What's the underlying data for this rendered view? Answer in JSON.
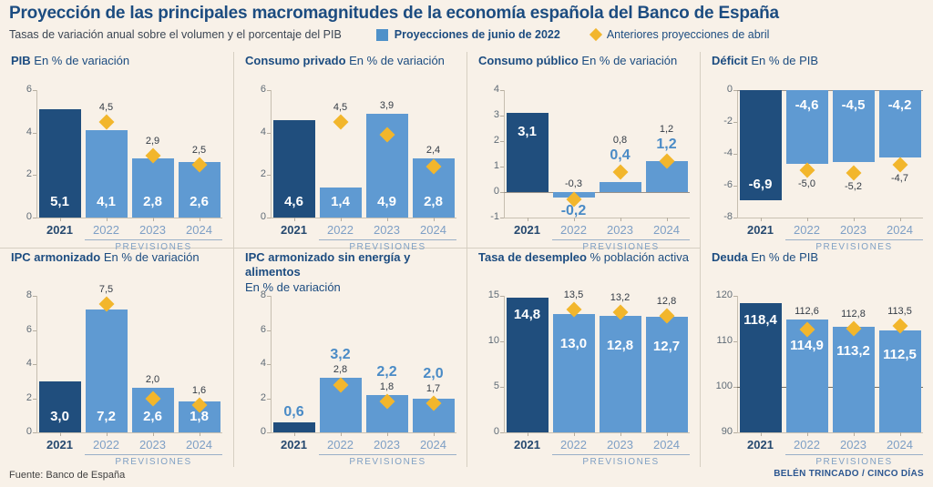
{
  "header": {
    "title": "Proyección de las principales macromagnitudes de la economía española del Banco de España",
    "subtitle": "Tasas de variación anual sobre el volumen y el porcentaje del PIB",
    "legend_june": "Proyecciones de junio de 2022",
    "legend_april": "Anteriores proyecciones de abril"
  },
  "footer": {
    "source": "Fuente: Banco de España",
    "credit": "BELÉN TRINCADO / CINCO DÍAS"
  },
  "previsiones_label": "PREVISIONES",
  "colors": {
    "background": "#f8f1e8",
    "dark_bar": "#204e7d",
    "light_bar": "#5f9ad2",
    "diamond": "#f2b62c",
    "navy_text": "#1c4c80",
    "blue_text": "#4a8bc6"
  },
  "chart_data": [
    {
      "type": "bar",
      "title": "PIB",
      "unit": "En % de variación",
      "unit_break": false,
      "ylim": [
        0,
        6
      ],
      "ticks": [
        6,
        4,
        2,
        0
      ],
      "refline": null,
      "categories": [
        "2021",
        "2022",
        "2023",
        "2024"
      ],
      "bars": [
        {
          "year": "2021",
          "value": 5.1,
          "label": "5,1",
          "label_pos": "in-bottom",
          "dark": true,
          "diamond": null,
          "diamond_label": null
        },
        {
          "year": "2022",
          "value": 4.1,
          "label": "4,1",
          "label_pos": "in-bottom",
          "dark": false,
          "diamond": 4.5,
          "diamond_label": "4,5",
          "diamond_label_pos": "above"
        },
        {
          "year": "2023",
          "value": 2.8,
          "label": "2,8",
          "label_pos": "in-bottom",
          "dark": false,
          "diamond": 2.9,
          "diamond_label": "2,9",
          "diamond_label_pos": "above"
        },
        {
          "year": "2024",
          "value": 2.6,
          "label": "2,6",
          "label_pos": "in-bottom",
          "dark": false,
          "diamond": 2.5,
          "diamond_label": "2,5",
          "diamond_label_pos": "above"
        }
      ]
    },
    {
      "type": "bar",
      "title": "Consumo privado",
      "unit": "En % de variación",
      "unit_break": false,
      "ylim": [
        0,
        6
      ],
      "ticks": [
        6,
        4,
        2,
        0
      ],
      "refline": null,
      "categories": [
        "2021",
        "2022",
        "2023",
        "2024"
      ],
      "bars": [
        {
          "year": "2021",
          "value": 4.6,
          "label": "4,6",
          "label_pos": "in-bottom",
          "dark": true,
          "diamond": null,
          "diamond_label": null
        },
        {
          "year": "2022",
          "value": 1.4,
          "label": "1,4",
          "label_pos": "in-bottom",
          "dark": false,
          "diamond": 4.5,
          "diamond_label": "4,5",
          "diamond_label_pos": "above"
        },
        {
          "year": "2023",
          "value": 4.9,
          "label": "4,9",
          "label_pos": "in-bottom",
          "dark": false,
          "diamond": 3.9,
          "diamond_label": "3,9",
          "diamond_label_pos": "above"
        },
        {
          "year": "2024",
          "value": 2.8,
          "label": "2,8",
          "label_pos": "in-bottom",
          "dark": false,
          "diamond": 2.4,
          "diamond_label": "2,4",
          "diamond_label_pos": "above"
        }
      ]
    },
    {
      "type": "bar",
      "title": "Consumo público",
      "unit": "En % de variación",
      "unit_break": false,
      "ylim": [
        -1,
        4
      ],
      "ticks": [
        4,
        3,
        2,
        1,
        0,
        -1
      ],
      "refline": null,
      "categories": [
        "2021",
        "2022",
        "2023",
        "2024"
      ],
      "bars": [
        {
          "year": "2021",
          "value": 3.1,
          "label": "3,1",
          "label_pos": "in-top",
          "label_dy": 12,
          "dark": true,
          "diamond": null,
          "diamond_label": null
        },
        {
          "year": "2022",
          "value": -0.2,
          "label": "-0,2",
          "label_pos": "below",
          "dark": false,
          "diamond": -0.3,
          "diamond_label": "-0,3",
          "diamond_label_pos": "above"
        },
        {
          "year": "2023",
          "value": 0.4,
          "label": "0,4",
          "label_pos": "above",
          "dark": false,
          "diamond": 0.8,
          "diamond_label": "0,8",
          "diamond_label_pos": "above"
        },
        {
          "year": "2024",
          "value": 1.2,
          "label": "1,2",
          "label_pos": "above",
          "dark": false,
          "diamond": 1.2,
          "diamond_label": "1,2",
          "diamond_label_pos": "above"
        }
      ]
    },
    {
      "type": "bar",
      "title": "Déficit",
      "unit": "En % de PIB",
      "unit_break": false,
      "ylim": [
        -8,
        0
      ],
      "ticks": [
        0,
        -2,
        -4,
        -6,
        -8
      ],
      "refline": null,
      "categories": [
        "2021",
        "2022",
        "2023",
        "2024"
      ],
      "bars": [
        {
          "year": "2021",
          "value": -6.9,
          "label": "-6,9",
          "label_pos": "in-bottom",
          "dark": true,
          "diamond": null,
          "diamond_label": null
        },
        {
          "year": "2022",
          "value": -4.6,
          "label": "-4,6",
          "label_pos": "in-top",
          "dark": false,
          "diamond": -5.0,
          "diamond_label": "-5,0",
          "diamond_label_pos": "below"
        },
        {
          "year": "2023",
          "value": -4.5,
          "label": "-4,5",
          "label_pos": "in-top",
          "dark": false,
          "diamond": -5.2,
          "diamond_label": "-5,2",
          "diamond_label_pos": "below"
        },
        {
          "year": "2024",
          "value": -4.2,
          "label": "-4,2",
          "label_pos": "in-top",
          "dark": false,
          "diamond": -4.7,
          "diamond_label": "-4,7",
          "diamond_label_pos": "below"
        }
      ]
    },
    {
      "type": "bar",
      "title": "IPC armonizado",
      "unit": "En % de variación",
      "unit_break": false,
      "ylim": [
        0,
        8
      ],
      "ticks": [
        8,
        6,
        4,
        2,
        0
      ],
      "refline": null,
      "categories": [
        "2021",
        "2022",
        "2023",
        "2024"
      ],
      "bars": [
        {
          "year": "2021",
          "value": 3.0,
          "label": "3,0",
          "label_pos": "in-bottom",
          "dark": true,
          "diamond": null,
          "diamond_label": null
        },
        {
          "year": "2022",
          "value": 7.2,
          "label": "7,2",
          "label_pos": "in-bottom",
          "dark": false,
          "diamond": 7.5,
          "diamond_label": "7,5",
          "diamond_label_pos": "above"
        },
        {
          "year": "2023",
          "value": 2.6,
          "label": "2,6",
          "label_pos": "in-bottom",
          "dark": false,
          "diamond": 2.0,
          "diamond_label": "2,0",
          "diamond_label_pos": "above"
        },
        {
          "year": "2024",
          "value": 1.8,
          "label": "1,8",
          "label_pos": "in-bottom",
          "dark": false,
          "diamond": 1.6,
          "diamond_label": "1,6",
          "diamond_label_pos": "above"
        }
      ]
    },
    {
      "type": "bar",
      "title": "IPC armonizado sin energía y alimentos",
      "unit": "En % de variación",
      "unit_break": true,
      "ylim": [
        0,
        8
      ],
      "ticks": [
        8,
        6,
        4,
        2,
        0
      ],
      "refline": null,
      "categories": [
        "2021",
        "2022",
        "2023",
        "2024"
      ],
      "bars": [
        {
          "year": "2021",
          "value": 0.6,
          "label": "0,6",
          "label_pos": "above",
          "dark": true,
          "diamond": null,
          "diamond_label": null
        },
        {
          "year": "2022",
          "value": 3.2,
          "label": "3,2",
          "label_pos": "above",
          "dark": false,
          "diamond": 2.8,
          "diamond_label": "2,8",
          "diamond_label_pos": "above"
        },
        {
          "year": "2023",
          "value": 2.2,
          "label": "2,2",
          "label_pos": "above",
          "dark": false,
          "diamond": 1.8,
          "diamond_label": "1,8",
          "diamond_label_pos": "above"
        },
        {
          "year": "2024",
          "value": 2.0,
          "label": "2,0",
          "label_pos": "above",
          "dark": false,
          "diamond": 1.7,
          "diamond_label": "1,7",
          "diamond_label_pos": "above"
        }
      ]
    },
    {
      "type": "bar",
      "title": "Tasa de desempleo",
      "unit": "% población activa",
      "unit_break": false,
      "ylim": [
        0,
        15
      ],
      "ticks": [
        15,
        10,
        5,
        0
      ],
      "refline": null,
      "categories": [
        "2021",
        "2022",
        "2023",
        "2024"
      ],
      "bars": [
        {
          "year": "2021",
          "value": 14.8,
          "label": "14,8",
          "label_pos": "in-top",
          "label_dy": 10,
          "dark": true,
          "diamond": null,
          "diamond_label": null
        },
        {
          "year": "2022",
          "value": 13.0,
          "label": "13,0",
          "label_pos": "in-top",
          "label_dy": 24,
          "dark": false,
          "diamond": 13.5,
          "diamond_label": "13,5",
          "diamond_label_pos": "above"
        },
        {
          "year": "2023",
          "value": 12.8,
          "label": "12,8",
          "label_pos": "in-top",
          "label_dy": 24,
          "dark": false,
          "diamond": 13.2,
          "diamond_label": "13,2",
          "diamond_label_pos": "above"
        },
        {
          "year": "2024",
          "value": 12.7,
          "label": "12,7",
          "label_pos": "in-top",
          "label_dy": 24,
          "dark": false,
          "diamond": 12.8,
          "diamond_label": "12,8",
          "diamond_label_pos": "above"
        }
      ]
    },
    {
      "type": "bar",
      "title": "Deuda",
      "unit": "En % de PIB",
      "unit_break": false,
      "ylim": [
        90,
        120
      ],
      "ticks": [
        120,
        110,
        100,
        90
      ],
      "refline": 100,
      "categories": [
        "2021",
        "2022",
        "2023",
        "2024"
      ],
      "bars": [
        {
          "year": "2021",
          "value": 118.4,
          "label": "118,4",
          "label_pos": "in-top",
          "label_dy": 10,
          "dark": true,
          "diamond": null,
          "diamond_label": null
        },
        {
          "year": "2022",
          "value": 114.9,
          "label": "114,9",
          "label_pos": "in-top",
          "label_dy": 20,
          "dark": false,
          "diamond": 112.6,
          "diamond_label": "112,6",
          "diamond_label_pos": "above"
        },
        {
          "year": "2023",
          "value": 113.2,
          "label": "113,2",
          "label_pos": "in-top",
          "label_dy": 18,
          "dark": false,
          "diamond": 112.8,
          "diamond_label": "112,8",
          "diamond_label_pos": "above"
        },
        {
          "year": "2024",
          "value": 112.5,
          "label": "112,5",
          "label_pos": "in-top",
          "label_dy": 18,
          "dark": false,
          "diamond": 113.5,
          "diamond_label": "113,5",
          "diamond_label_pos": "above"
        }
      ]
    }
  ]
}
